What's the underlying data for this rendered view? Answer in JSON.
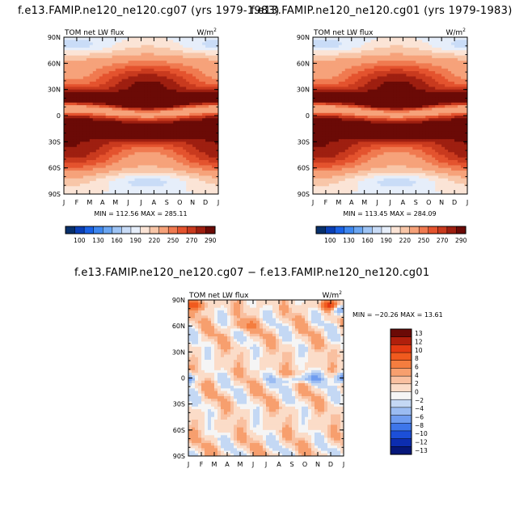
{
  "chart_data": [
    {
      "type": "heatmap",
      "title": "f.e13.FAMIP.ne120_ne120.cg07 (yrs 1979-1983)",
      "left_label": "TOM net LW flux",
      "units_label": "W/m",
      "units_sup": "2",
      "x_tick_labels": [
        "J",
        "F",
        "M",
        "A",
        "M",
        "J",
        "J",
        "A",
        "S",
        "O",
        "N",
        "D",
        "J"
      ],
      "y_tick_labels": [
        "90N",
        "60N",
        "30N",
        "0",
        "30S",
        "60S",
        "90S"
      ],
      "y_range": [
        90,
        -90
      ],
      "min_label": "MIN = 112.56",
      "max_label": "MAX = 285.11",
      "colorbar_levels": [
        "100",
        "130",
        "160",
        "190",
        "220",
        "250",
        "270",
        "290"
      ]
    },
    {
      "type": "heatmap",
      "title": "f.e13.FAMIP.ne120_ne120.cg01 (yrs 1979-1983)",
      "left_label": "TOM net LW flux",
      "units_label": "W/m",
      "units_sup": "2",
      "x_tick_labels": [
        "J",
        "F",
        "M",
        "A",
        "M",
        "J",
        "J",
        "A",
        "S",
        "O",
        "N",
        "D",
        "J"
      ],
      "y_tick_labels": [
        "90N",
        "60N",
        "30N",
        "0",
        "30S",
        "60S",
        "90S"
      ],
      "y_range": [
        90,
        -90
      ],
      "min_label": "MIN = 113.45",
      "max_label": "MAX = 284.09",
      "colorbar_levels": [
        "100",
        "130",
        "160",
        "190",
        "220",
        "250",
        "270",
        "290"
      ]
    },
    {
      "type": "heatmap",
      "title": "f.e13.FAMIP.ne120_ne120.cg07 − f.e13.FAMIP.ne120_ne120.cg01",
      "left_label": "TOM net LW flux",
      "units_label": "W/m",
      "units_sup": "2",
      "x_tick_labels": [
        "J",
        "F",
        "M",
        "A",
        "M",
        "J",
        "J",
        "A",
        "S",
        "O",
        "N",
        "D",
        "J"
      ],
      "y_tick_labels": [
        "90N",
        "60N",
        "30N",
        "0",
        "30S",
        "60S",
        "90S"
      ],
      "y_range": [
        90,
        -90
      ],
      "min_label": "MIN = −20.26",
      "max_label": "MAX =  13.61",
      "colorbar_levels": [
        "13",
        "12",
        "10",
        "8",
        "6",
        "4",
        "2",
        "0",
        "−2",
        "−4",
        "−6",
        "−8",
        "−10",
        "−12",
        "−13"
      ]
    }
  ],
  "colors": {
    "abs_scale": [
      "#08306b",
      "#0a3fb6",
      "#1a62e6",
      "#3d87f0",
      "#6aa6f3",
      "#9ec4f5",
      "#c9dcf7",
      "#e6eefa",
      "#fbe4d6",
      "#f8c6a8",
      "#f6a27a",
      "#f07a50",
      "#e4532e",
      "#c93a1e",
      "#9e1f10",
      "#6b0a06"
    ],
    "diff_scale": [
      "#6b0a06",
      "#b01f0c",
      "#e33a12",
      "#f05a1e",
      "#f47d3f",
      "#f79f6e",
      "#f9c0a0",
      "#fbdcc8",
      "#f5f5f5",
      "#c4d8f4",
      "#9bbcf2",
      "#6f9cf0",
      "#3e76ea",
      "#1c4fd8",
      "#0c2db0",
      "#06177a"
    ]
  }
}
